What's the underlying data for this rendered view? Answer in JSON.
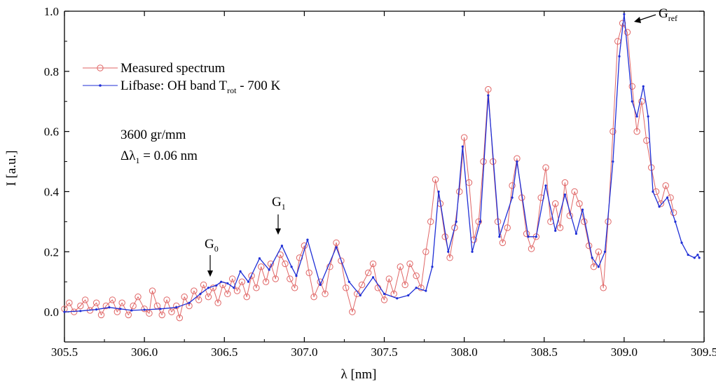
{
  "chart_data": {
    "type": "line",
    "xlabel": "λ [nm]",
    "ylabel": "I [a.u.]",
    "xlim": [
      305.5,
      309.5
    ],
    "ylim": [
      -0.1,
      1.0
    ],
    "xticks": [
      "305.5",
      "306.0",
      "306.5",
      "307.0",
      "307.5",
      "308.0",
      "308.5",
      "309.0",
      "309.5"
    ],
    "yticks": [
      "0.0",
      "0.2",
      "0.4",
      "0.6",
      "0.8",
      "1.0"
    ],
    "grid": false,
    "legend_position": "top-left",
    "legend": {
      "measured": "Measured spectrum",
      "lifbase_prefix": "Lifbase: OH band T",
      "lifbase_sub": "rot",
      "lifbase_suffix": " - 700 K"
    },
    "annotations": {
      "grating": "3600 gr/mm",
      "resolution_prefix": "Δλ",
      "resolution_sub": "1",
      "resolution_suffix": " = 0.06 nm"
    },
    "peak_labels": [
      {
        "letter": "G",
        "sub": "0",
        "x": 306.45,
        "y": 0.085
      },
      {
        "letter": "G",
        "sub": "1",
        "x": 306.87,
        "y": 0.21
      },
      {
        "letter": "G",
        "sub": "ref",
        "x": 309.0,
        "y": 1.0
      }
    ],
    "colors": {
      "measured": "#e06666",
      "lifbase": "#1f2fd6"
    },
    "series": [
      {
        "key": "lifbase",
        "name": "Lifbase: OH band Trot - 700 K",
        "marker": "dot",
        "points": [
          [
            305.5,
            0.0
          ],
          [
            305.6,
            0.003
          ],
          [
            305.7,
            0.008
          ],
          [
            305.78,
            0.015
          ],
          [
            305.85,
            0.01
          ],
          [
            305.92,
            0.005
          ],
          [
            306.0,
            0.007
          ],
          [
            306.1,
            0.01
          ],
          [
            306.2,
            0.015
          ],
          [
            306.28,
            0.03
          ],
          [
            306.35,
            0.06
          ],
          [
            306.4,
            0.08
          ],
          [
            306.45,
            0.088
          ],
          [
            306.48,
            0.1
          ],
          [
            306.52,
            0.095
          ],
          [
            306.56,
            0.08
          ],
          [
            306.6,
            0.135
          ],
          [
            306.65,
            0.1
          ],
          [
            306.72,
            0.178
          ],
          [
            306.78,
            0.14
          ],
          [
            306.86,
            0.22
          ],
          [
            306.92,
            0.15
          ],
          [
            306.95,
            0.12
          ],
          [
            307.02,
            0.24
          ],
          [
            307.1,
            0.09
          ],
          [
            307.2,
            0.215
          ],
          [
            307.28,
            0.1
          ],
          [
            307.35,
            0.055
          ],
          [
            307.43,
            0.115
          ],
          [
            307.5,
            0.06
          ],
          [
            307.58,
            0.045
          ],
          [
            307.65,
            0.055
          ],
          [
            307.7,
            0.08
          ],
          [
            307.76,
            0.07
          ],
          [
            307.8,
            0.15
          ],
          [
            307.84,
            0.4
          ],
          [
            307.9,
            0.2
          ],
          [
            307.95,
            0.3
          ],
          [
            307.99,
            0.55
          ],
          [
            308.05,
            0.2
          ],
          [
            308.1,
            0.3
          ],
          [
            308.15,
            0.72
          ],
          [
            308.22,
            0.25
          ],
          [
            308.3,
            0.38
          ],
          [
            308.33,
            0.5
          ],
          [
            308.4,
            0.25
          ],
          [
            308.45,
            0.25
          ],
          [
            308.51,
            0.42
          ],
          [
            308.57,
            0.27
          ],
          [
            308.63,
            0.39
          ],
          [
            308.7,
            0.26
          ],
          [
            308.74,
            0.34
          ],
          [
            308.8,
            0.18
          ],
          [
            308.84,
            0.15
          ],
          [
            308.88,
            0.2
          ],
          [
            308.93,
            0.5
          ],
          [
            308.97,
            0.85
          ],
          [
            309.0,
            0.99
          ],
          [
            309.05,
            0.7
          ],
          [
            309.08,
            0.65
          ],
          [
            309.12,
            0.75
          ],
          [
            309.15,
            0.65
          ],
          [
            309.18,
            0.4
          ],
          [
            309.22,
            0.35
          ],
          [
            309.27,
            0.38
          ],
          [
            309.32,
            0.3
          ],
          [
            309.36,
            0.23
          ],
          [
            309.4,
            0.19
          ],
          [
            309.44,
            0.18
          ],
          [
            309.46,
            0.19
          ],
          [
            309.47,
            0.18
          ]
        ]
      },
      {
        "key": "measured",
        "name": "Measured spectrum",
        "marker": "circle",
        "points": [
          [
            305.5,
            0.01
          ],
          [
            305.53,
            0.03
          ],
          [
            305.56,
            0.0
          ],
          [
            305.6,
            0.02
          ],
          [
            305.63,
            0.04
          ],
          [
            305.66,
            0.005
          ],
          [
            305.7,
            0.03
          ],
          [
            305.73,
            -0.01
          ],
          [
            305.76,
            0.02
          ],
          [
            305.8,
            0.04
          ],
          [
            305.83,
            0.0
          ],
          [
            305.86,
            0.03
          ],
          [
            305.9,
            -0.01
          ],
          [
            305.93,
            0.02
          ],
          [
            305.96,
            0.05
          ],
          [
            306.0,
            0.01
          ],
          [
            306.03,
            -0.005
          ],
          [
            306.05,
            0.07
          ],
          [
            306.08,
            0.02
          ],
          [
            306.11,
            -0.01
          ],
          [
            306.14,
            0.04
          ],
          [
            306.17,
            0.0
          ],
          [
            306.2,
            0.02
          ],
          [
            306.22,
            -0.02
          ],
          [
            306.25,
            0.05
          ],
          [
            306.28,
            0.02
          ],
          [
            306.31,
            0.07
          ],
          [
            306.34,
            0.04
          ],
          [
            306.37,
            0.09
          ],
          [
            306.4,
            0.05
          ],
          [
            306.43,
            0.08
          ],
          [
            306.46,
            0.03
          ],
          [
            306.49,
            0.09
          ],
          [
            306.52,
            0.06
          ],
          [
            306.55,
            0.11
          ],
          [
            306.58,
            0.07
          ],
          [
            306.61,
            0.1
          ],
          [
            306.64,
            0.05
          ],
          [
            306.67,
            0.12
          ],
          [
            306.7,
            0.08
          ],
          [
            306.73,
            0.15
          ],
          [
            306.76,
            0.1
          ],
          [
            306.79,
            0.16
          ],
          [
            306.82,
            0.11
          ],
          [
            306.85,
            0.19
          ],
          [
            306.88,
            0.16
          ],
          [
            306.91,
            0.11
          ],
          [
            306.94,
            0.08
          ],
          [
            306.97,
            0.18
          ],
          [
            307.0,
            0.22
          ],
          [
            307.03,
            0.13
          ],
          [
            307.06,
            0.05
          ],
          [
            307.1,
            0.1
          ],
          [
            307.13,
            0.06
          ],
          [
            307.16,
            0.15
          ],
          [
            307.2,
            0.23
          ],
          [
            307.23,
            0.17
          ],
          [
            307.26,
            0.08
          ],
          [
            307.3,
            0.0
          ],
          [
            307.33,
            0.06
          ],
          [
            307.36,
            0.09
          ],
          [
            307.4,
            0.13
          ],
          [
            307.43,
            0.16
          ],
          [
            307.46,
            0.08
          ],
          [
            307.5,
            0.04
          ],
          [
            307.53,
            0.11
          ],
          [
            307.56,
            0.06
          ],
          [
            307.6,
            0.15
          ],
          [
            307.63,
            0.09
          ],
          [
            307.66,
            0.16
          ],
          [
            307.7,
            0.12
          ],
          [
            307.73,
            0.08
          ],
          [
            307.76,
            0.2
          ],
          [
            307.79,
            0.3
          ],
          [
            307.82,
            0.44
          ],
          [
            307.85,
            0.36
          ],
          [
            307.88,
            0.25
          ],
          [
            307.91,
            0.18
          ],
          [
            307.94,
            0.28
          ],
          [
            307.97,
            0.4
          ],
          [
            308.0,
            0.58
          ],
          [
            308.03,
            0.43
          ],
          [
            308.06,
            0.24
          ],
          [
            308.09,
            0.3
          ],
          [
            308.12,
            0.5
          ],
          [
            308.15,
            0.74
          ],
          [
            308.18,
            0.5
          ],
          [
            308.21,
            0.3
          ],
          [
            308.24,
            0.23
          ],
          [
            308.27,
            0.28
          ],
          [
            308.3,
            0.42
          ],
          [
            308.33,
            0.51
          ],
          [
            308.36,
            0.38
          ],
          [
            308.39,
            0.26
          ],
          [
            308.42,
            0.21
          ],
          [
            308.45,
            0.25
          ],
          [
            308.48,
            0.38
          ],
          [
            308.51,
            0.48
          ],
          [
            308.54,
            0.3
          ],
          [
            308.57,
            0.36
          ],
          [
            308.6,
            0.28
          ],
          [
            308.63,
            0.43
          ],
          [
            308.66,
            0.32
          ],
          [
            308.69,
            0.4
          ],
          [
            308.72,
            0.36
          ],
          [
            308.75,
            0.3
          ],
          [
            308.78,
            0.22
          ],
          [
            308.81,
            0.15
          ],
          [
            308.84,
            0.2
          ],
          [
            308.87,
            0.08
          ],
          [
            308.9,
            0.3
          ],
          [
            308.93,
            0.6
          ],
          [
            308.96,
            0.9
          ],
          [
            308.99,
            0.96
          ],
          [
            309.02,
            0.93
          ],
          [
            309.05,
            0.75
          ],
          [
            309.08,
            0.6
          ],
          [
            309.11,
            0.7
          ],
          [
            309.14,
            0.57
          ],
          [
            309.17,
            0.48
          ],
          [
            309.2,
            0.4
          ],
          [
            309.23,
            0.36
          ],
          [
            309.26,
            0.42
          ],
          [
            309.29,
            0.38
          ],
          [
            309.31,
            0.33
          ]
        ]
      }
    ]
  }
}
